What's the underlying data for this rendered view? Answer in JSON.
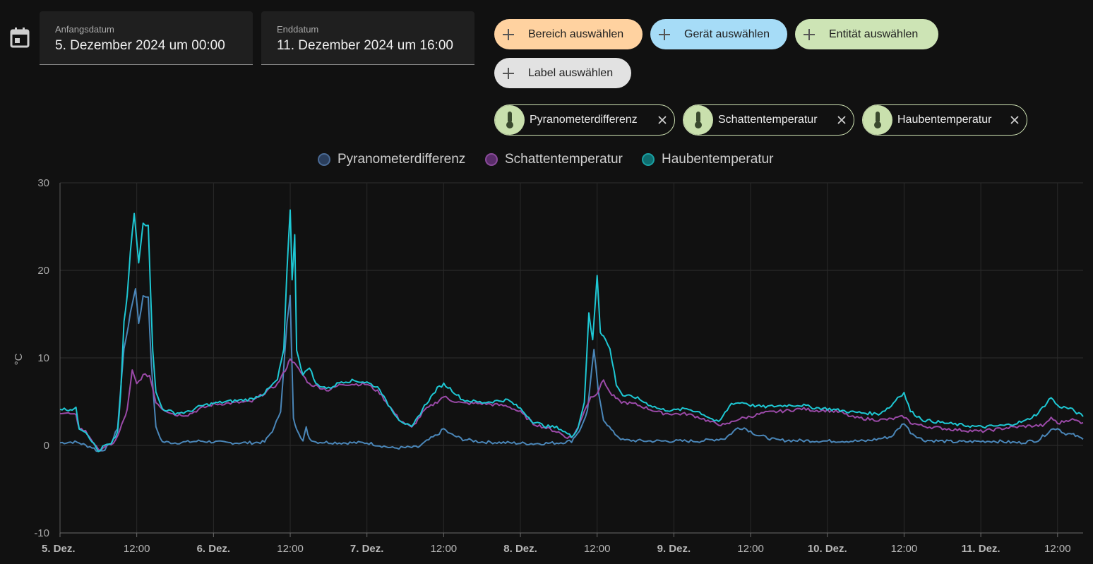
{
  "start_date": {
    "label": "Anfangsdatum",
    "value": "5. Dezember 2024 um 00:00"
  },
  "end_date": {
    "label": "Enddatum",
    "value": "11. Dezember 2024 um 16:00"
  },
  "add_chips": [
    {
      "label": "Bereich auswählen",
      "color": "#ffd2a0"
    },
    {
      "label": "Gerät auswählen",
      "color": "#a6dcf7"
    },
    {
      "label": "Entität auswählen",
      "color": "#cde4b5"
    },
    {
      "label": "Label auswählen",
      "color": "#e2e2e2"
    }
  ],
  "entity_chips": [
    {
      "label": "Pyranometerdifferenz",
      "icon": "thermometer-icon"
    },
    {
      "label": "Schattentemperatur",
      "icon": "thermometer-icon"
    },
    {
      "label": "Haubentemperatur",
      "icon": "thermometer-icon"
    }
  ],
  "chart_data": {
    "type": "line",
    "ylabel": "°C",
    "ylim": [
      -10,
      30
    ],
    "yticks": [
      30,
      20,
      10,
      0,
      -10
    ],
    "xlim": [
      0,
      160
    ],
    "x_unit": "hours since 5. Dez. 00:00",
    "xticks": [
      {
        "x": 0,
        "label": "5. Dez.",
        "bold": true
      },
      {
        "x": 12,
        "label": "12:00",
        "bold": false
      },
      {
        "x": 24,
        "label": "6. Dez.",
        "bold": true
      },
      {
        "x": 36,
        "label": "12:00",
        "bold": false
      },
      {
        "x": 48,
        "label": "7. Dez.",
        "bold": true
      },
      {
        "x": 60,
        "label": "12:00",
        "bold": false
      },
      {
        "x": 72,
        "label": "8. Dez.",
        "bold": true
      },
      {
        "x": 84,
        "label": "12:00",
        "bold": false
      },
      {
        "x": 96,
        "label": "9. Dez.",
        "bold": true
      },
      {
        "x": 108,
        "label": "12:00",
        "bold": false
      },
      {
        "x": 120,
        "label": "10. Dez.",
        "bold": true
      },
      {
        "x": 132,
        "label": "12:00",
        "bold": false
      },
      {
        "x": 144,
        "label": "11. Dez.",
        "bold": true
      },
      {
        "x": 156,
        "label": "12:00",
        "bold": false
      }
    ],
    "grid": true,
    "legend_position": "top-center",
    "series": [
      {
        "name": "Pyranometerdifferenz",
        "color": "#4a86b8",
        "dot_fill": "#2a3e5c",
        "dot_border": "#4a6a94",
        "points": [
          [
            0,
            0.3
          ],
          [
            2,
            0.4
          ],
          [
            3,
            0.3
          ],
          [
            4,
            0
          ],
          [
            5,
            -0.2
          ],
          [
            6,
            -0.7
          ],
          [
            7,
            -0.4
          ],
          [
            8,
            0.2
          ],
          [
            9,
            2
          ],
          [
            10,
            11
          ],
          [
            11,
            15
          ],
          [
            11.8,
            18
          ],
          [
            12.3,
            14
          ],
          [
            13,
            17
          ],
          [
            13.8,
            17
          ],
          [
            14.3,
            9
          ],
          [
            15,
            2
          ],
          [
            16,
            0.4
          ],
          [
            18,
            0.3
          ],
          [
            22,
            0.5
          ],
          [
            24,
            0.4
          ],
          [
            26,
            0.3
          ],
          [
            30,
            0.3
          ],
          [
            32,
            0.4
          ],
          [
            33.5,
            2
          ],
          [
            34.5,
            4
          ],
          [
            35.5,
            14
          ],
          [
            36,
            17
          ],
          [
            36.5,
            3
          ],
          [
            37,
            2
          ],
          [
            38,
            0.5
          ],
          [
            38.5,
            2
          ],
          [
            39,
            0.8
          ],
          [
            40,
            0.4
          ],
          [
            44,
            0.3
          ],
          [
            48,
            0.3
          ],
          [
            52,
            -0.3
          ],
          [
            56,
            -0.2
          ],
          [
            58,
            0.8
          ],
          [
            59,
            1.2
          ],
          [
            60,
            1.9
          ],
          [
            61,
            1.3
          ],
          [
            63,
            0.7
          ],
          [
            66,
            0.4
          ],
          [
            70,
            0.3
          ],
          [
            74,
            0.2
          ],
          [
            78,
            0.3
          ],
          [
            80,
            0.5
          ],
          [
            81.5,
            2
          ],
          [
            82.5,
            4
          ],
          [
            83.5,
            11
          ],
          [
            84.2,
            6
          ],
          [
            85,
            3
          ],
          [
            86.5,
            1.5
          ],
          [
            88,
            0.6
          ],
          [
            92,
            0.5
          ],
          [
            96,
            0.5
          ],
          [
            100,
            0.5
          ],
          [
            104,
            0.8
          ],
          [
            106,
            2
          ],
          [
            107,
            2
          ],
          [
            109,
            1.2
          ],
          [
            112,
            0.6
          ],
          [
            120,
            0.5
          ],
          [
            126,
            0.5
          ],
          [
            130,
            1
          ],
          [
            132,
            2.6
          ],
          [
            133,
            1.5
          ],
          [
            135,
            0.6
          ],
          [
            140,
            0.4
          ],
          [
            146,
            0.5
          ],
          [
            150,
            0.3
          ],
          [
            153,
            0.6
          ],
          [
            155,
            1.8
          ],
          [
            156,
            2
          ],
          [
            157,
            1.4
          ],
          [
            158.5,
            1.2
          ],
          [
            160,
            0.7
          ]
        ]
      },
      {
        "name": "Schattentemperatur",
        "color": "#9b4aa8",
        "dot_fill": "#5a2d6a",
        "dot_border": "#8a4a9a",
        "points": [
          [
            0,
            3.8
          ],
          [
            1,
            3.7
          ],
          [
            2.5,
            3.4
          ],
          [
            3,
            2
          ],
          [
            4,
            1.6
          ],
          [
            5,
            0.6
          ],
          [
            6,
            -0.6
          ],
          [
            7,
            -0.1
          ],
          [
            8,
            0
          ],
          [
            9,
            1
          ],
          [
            10,
            3
          ],
          [
            10.5,
            4
          ],
          [
            11.3,
            8.5
          ],
          [
            12,
            7
          ],
          [
            13,
            8
          ],
          [
            14,
            8
          ],
          [
            15,
            5
          ],
          [
            16,
            4.2
          ],
          [
            18,
            3.5
          ],
          [
            20,
            3.5
          ],
          [
            22,
            4.2
          ],
          [
            24,
            4.7
          ],
          [
            26,
            4.8
          ],
          [
            30,
            5
          ],
          [
            32,
            6
          ],
          [
            34,
            7
          ],
          [
            35.5,
            9
          ],
          [
            36,
            10
          ],
          [
            37,
            9
          ],
          [
            38,
            8
          ],
          [
            39,
            7
          ],
          [
            40,
            6.8
          ],
          [
            42,
            6.3
          ],
          [
            44,
            7
          ],
          [
            46,
            7
          ],
          [
            48,
            7
          ],
          [
            50,
            6
          ],
          [
            51,
            5
          ],
          [
            53,
            3
          ],
          [
            55,
            2
          ],
          [
            57,
            4
          ],
          [
            59,
            5
          ],
          [
            60,
            5.6
          ],
          [
            61,
            5.2
          ],
          [
            63,
            4.8
          ],
          [
            66,
            4.8
          ],
          [
            70,
            4.5
          ],
          [
            72,
            3.8
          ],
          [
            74,
            2.5
          ],
          [
            76,
            2
          ],
          [
            78,
            1.5
          ],
          [
            79,
            1
          ],
          [
            80,
            0.9
          ],
          [
            81,
            2
          ],
          [
            82,
            4
          ],
          [
            83,
            5.5
          ],
          [
            84,
            6
          ],
          [
            85,
            7.5
          ],
          [
            86,
            6
          ],
          [
            87.5,
            5
          ],
          [
            90,
            4.7
          ],
          [
            92,
            4.2
          ],
          [
            94,
            3.7
          ],
          [
            96,
            3.6
          ],
          [
            98,
            3.6
          ],
          [
            100,
            3.2
          ],
          [
            102,
            2.6
          ],
          [
            104,
            2.3
          ],
          [
            106,
            3
          ],
          [
            108,
            3.3
          ],
          [
            110,
            3.7
          ],
          [
            114,
            4
          ],
          [
            116,
            4.2
          ],
          [
            118,
            4
          ],
          [
            120,
            4
          ],
          [
            122,
            3.8
          ],
          [
            124,
            3.2
          ],
          [
            128,
            2.9
          ],
          [
            130,
            3
          ],
          [
            132,
            3.3
          ],
          [
            133,
            2.6
          ],
          [
            135,
            2.2
          ],
          [
            140,
            1.8
          ],
          [
            144,
            1.6
          ],
          [
            148,
            2
          ],
          [
            151,
            2.2
          ],
          [
            154,
            2.3
          ],
          [
            155,
            3.2
          ],
          [
            156,
            2.5
          ],
          [
            158,
            3
          ],
          [
            160,
            2.6
          ]
        ]
      },
      {
        "name": "Haubentemperatur",
        "color": "#1ec8d4",
        "dot_fill": "#0e6e70",
        "dot_border": "#1aa0a2",
        "points": [
          [
            0,
            4.2
          ],
          [
            1,
            4.1
          ],
          [
            2.5,
            4.2
          ],
          [
            3,
            2
          ],
          [
            4,
            1.6
          ],
          [
            5,
            0.5
          ],
          [
            6,
            -0.7
          ],
          [
            7,
            0
          ],
          [
            8,
            0.1
          ],
          [
            9,
            1.5
          ],
          [
            9.5,
            6
          ],
          [
            10,
            14
          ],
          [
            10.5,
            17
          ],
          [
            11,
            22
          ],
          [
            11.6,
            26.5
          ],
          [
            12.3,
            21
          ],
          [
            13,
            25.5
          ],
          [
            13.8,
            25
          ],
          [
            14.5,
            11
          ],
          [
            15,
            6
          ],
          [
            16,
            4.2
          ],
          [
            18,
            3.7
          ],
          [
            20,
            3.8
          ],
          [
            22,
            4.5
          ],
          [
            24,
            4.8
          ],
          [
            26,
            5
          ],
          [
            30,
            5.3
          ],
          [
            32,
            6
          ],
          [
            34,
            7.5
          ],
          [
            35,
            11
          ],
          [
            35.5,
            20
          ],
          [
            36,
            27
          ],
          [
            36.3,
            19
          ],
          [
            36.7,
            24
          ],
          [
            37,
            11
          ],
          [
            38,
            8
          ],
          [
            39,
            9
          ],
          [
            40,
            7
          ],
          [
            42,
            6.5
          ],
          [
            44,
            7.3
          ],
          [
            46,
            7.4
          ],
          [
            48,
            7.2
          ],
          [
            50,
            6.5
          ],
          [
            51,
            5
          ],
          [
            53,
            3
          ],
          [
            55,
            2
          ],
          [
            57,
            4.5
          ],
          [
            59,
            6.5
          ],
          [
            60,
            7
          ],
          [
            61,
            6.5
          ],
          [
            63,
            5.2
          ],
          [
            66,
            4.9
          ],
          [
            70,
            5.2
          ],
          [
            72,
            4.2
          ],
          [
            74,
            2.7
          ],
          [
            76,
            2.2
          ],
          [
            78,
            2
          ],
          [
            79,
            1.5
          ],
          [
            80,
            1
          ],
          [
            81,
            2
          ],
          [
            82,
            5
          ],
          [
            82.7,
            15
          ],
          [
            83.3,
            12
          ],
          [
            84,
            19.5
          ],
          [
            84.5,
            13
          ],
          [
            85,
            12.5
          ],
          [
            86,
            11
          ],
          [
            87,
            7
          ],
          [
            88,
            5.7
          ],
          [
            90,
            5.5
          ],
          [
            92,
            4.7
          ],
          [
            94,
            4.1
          ],
          [
            96,
            4
          ],
          [
            98,
            4.2
          ],
          [
            100,
            3.8
          ],
          [
            102,
            3
          ],
          [
            103,
            2.6
          ],
          [
            105,
            4.8
          ],
          [
            107,
            4.9
          ],
          [
            108,
            4.6
          ],
          [
            110,
            4.4
          ],
          [
            114,
            4.6
          ],
          [
            116,
            4.6
          ],
          [
            118,
            4.3
          ],
          [
            120,
            4.2
          ],
          [
            122,
            4
          ],
          [
            124,
            3.8
          ],
          [
            128,
            3.6
          ],
          [
            130,
            4.5
          ],
          [
            131,
            5.5
          ],
          [
            132,
            6
          ],
          [
            133,
            3.9
          ],
          [
            135,
            2.9
          ],
          [
            140,
            2.4
          ],
          [
            144,
            2.1
          ],
          [
            148,
            2.3
          ],
          [
            151,
            2.8
          ],
          [
            153,
            3.7
          ],
          [
            155,
            5.5
          ],
          [
            156,
            4.5
          ],
          [
            158,
            4.2
          ],
          [
            160,
            3.3
          ]
        ]
      }
    ]
  }
}
